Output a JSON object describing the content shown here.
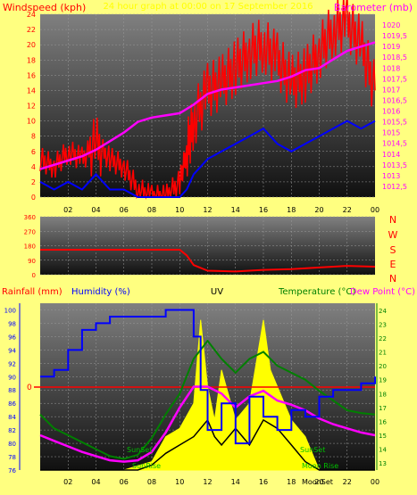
{
  "header": {
    "left_label": "Windspeed (kph)",
    "center_label": "24 hour graph at 00:00 on 17 September 2016",
    "right_label": "Barometer (mb)"
  },
  "compass": [
    "N",
    "W",
    "S",
    "E",
    "N"
  ],
  "bottom_header": {
    "rainfall": "Rainfall (mm)",
    "humidity": "Humidity (%)",
    "uv": "UV",
    "temperature": "Temperature (°C)",
    "dewpoint": "Dew Point (°C)"
  },
  "annotations": {
    "sunset_left": "SunSet",
    "sunset_right": "SunSet",
    "sunrise": "SunRise",
    "moonset": "MoonSet",
    "moonrise": "Moon Rise",
    "rain_zero": "0"
  },
  "colors": {
    "background": "#ffff80",
    "wind_gust": "#ff0000",
    "wind_avg": "#0000ff",
    "barometer": "#ff00ff",
    "direction": "#ff0000",
    "humidity": "#0000ff",
    "temperature": "#008000",
    "dewpoint": "#ff00ff",
    "uv": "#ffff00",
    "solar": "#000000",
    "rain": "#ff0000"
  },
  "chart_data": [
    {
      "type": "line",
      "name": "wind-barometer",
      "x_ticks": [
        "02",
        "04",
        "06",
        "08",
        "10",
        "12",
        "14",
        "16",
        "18",
        "20",
        "22",
        "00"
      ],
      "y_left_ticks": [
        "0",
        "2",
        "4",
        "6",
        "8",
        "10",
        "12",
        "14",
        "16",
        "18",
        "20",
        "22",
        "24"
      ],
      "y_left_range": [
        0,
        24
      ],
      "y_right_ticks": [
        "1012,5",
        "1013",
        "1013,5",
        "1014",
        "1014,5",
        "1015",
        "1015,5",
        "1016",
        "1016,5",
        "1017",
        "1017,5",
        "1018",
        "1018,5",
        "1019",
        "1019,5",
        "1020"
      ],
      "y_right_range": [
        1012,
        1020.5
      ],
      "barometer": {
        "x": [
          0,
          1,
          2,
          3,
          4,
          5,
          6,
          7,
          8,
          9,
          10,
          11,
          12,
          13,
          14,
          15,
          16,
          17,
          18,
          19,
          20,
          21,
          22,
          23,
          24
        ],
        "y": [
          1013.3,
          1013.5,
          1013.7,
          1013.9,
          1014.2,
          1014.6,
          1015.0,
          1015.5,
          1015.7,
          1015.8,
          1015.9,
          1016.3,
          1016.8,
          1017.0,
          1017.1,
          1017.2,
          1017.3,
          1017.4,
          1017.6,
          1017.9,
          1018.0,
          1018.4,
          1018.8,
          1019.0,
          1019.2
        ]
      },
      "wind_avg": {
        "x": [
          0,
          1,
          2,
          3,
          4,
          5,
          6,
          7,
          8,
          9,
          10,
          10.5,
          11,
          12,
          13,
          14,
          15,
          16,
          17,
          18,
          19,
          20,
          21,
          22,
          23,
          24
        ],
        "y": [
          2,
          1,
          2,
          1,
          3,
          1,
          1,
          0,
          0,
          0,
          0,
          1,
          3,
          5,
          6,
          7,
          8,
          9,
          7,
          6,
          7,
          8,
          9,
          10,
          9,
          10
        ]
      },
      "wind_gust": {
        "x": [
          0,
          1,
          2,
          3,
          4,
          5,
          6,
          7,
          8,
          9,
          10,
          10.5,
          11,
          12,
          13,
          14,
          15,
          16,
          17,
          18,
          19,
          20,
          21,
          22,
          23,
          24
        ],
        "y": [
          5,
          4,
          6,
          5,
          7,
          5,
          4,
          1,
          0,
          0,
          2,
          6,
          10,
          14,
          15,
          17,
          19,
          20,
          18,
          15,
          16,
          19,
          22,
          23,
          20,
          14
        ]
      }
    },
    {
      "type": "line",
      "name": "wind-direction",
      "y_ticks": [
        "0",
        "90",
        "180",
        "270",
        "360"
      ],
      "y_range": [
        0,
        360
      ],
      "x": [
        0,
        2,
        4,
        6,
        8,
        10,
        10.5,
        11,
        12,
        14,
        16,
        18,
        20,
        22,
        24
      ],
      "y": [
        155,
        155,
        155,
        155,
        155,
        155,
        120,
        60,
        25,
        20,
        30,
        35,
        45,
        55,
        50
      ]
    },
    {
      "type": "line",
      "name": "temp-humidity-uv",
      "x_ticks": [
        "02",
        "04",
        "06",
        "08",
        "10",
        "12",
        "14",
        "16",
        "18",
        "20",
        "22",
        "00"
      ],
      "humidity_ticks": [
        "76",
        "78",
        "80",
        "82",
        "84",
        "86",
        "88",
        "90",
        "92",
        "94",
        "96",
        "98",
        "100"
      ],
      "humidity_range": [
        76,
        101
      ],
      "temp_ticks": [
        "13",
        "14",
        "15",
        "16",
        "17",
        "18",
        "19",
        "20",
        "21",
        "22",
        "23",
        "24"
      ],
      "temp_range": [
        12.5,
        24.5
      ],
      "humidity": {
        "x": [
          0,
          1,
          2,
          3,
          4,
          5,
          6,
          7,
          8,
          9,
          10,
          11,
          11.5,
          12,
          13,
          14,
          15,
          16,
          17,
          18,
          19,
          20,
          21,
          22,
          23,
          24
        ],
        "y": [
          90,
          91,
          94,
          97,
          98,
          99,
          99,
          99,
          99,
          100,
          100,
          96,
          88,
          82,
          86,
          80,
          87,
          84,
          82,
          85,
          84,
          87,
          88,
          88,
          89,
          90
        ]
      },
      "temperature": {
        "x": [
          0,
          1,
          2,
          3,
          4,
          5,
          6,
          7,
          8,
          9,
          10,
          11,
          12,
          13,
          14,
          15,
          16,
          17,
          18,
          19,
          20,
          21,
          22,
          23,
          24
        ],
        "y": [
          16.5,
          15.5,
          15.0,
          14.5,
          14.0,
          13.5,
          13.3,
          13.6,
          14.8,
          16.5,
          18.0,
          20.5,
          21.8,
          20.5,
          19.5,
          20.5,
          21.0,
          20.0,
          19.5,
          19.0,
          18.2,
          17.5,
          16.8,
          16.6,
          16.5
        ]
      },
      "dewpoint": {
        "x": [
          0,
          1,
          2,
          3,
          4,
          5,
          6,
          7,
          8,
          9,
          10,
          11,
          12,
          13,
          14,
          15,
          16,
          17,
          18,
          19,
          20,
          21,
          22,
          23,
          24
        ],
        "y": [
          15.0,
          14.6,
          14.2,
          13.8,
          13.5,
          13.2,
          13.1,
          13.2,
          13.8,
          15.2,
          17.0,
          18.5,
          18.5,
          18.0,
          17.0,
          17.8,
          18.2,
          17.5,
          17.2,
          16.8,
          16.2,
          15.8,
          15.5,
          15.2,
          15.0
        ]
      },
      "uv": {
        "x": [
          0,
          6,
          8,
          9,
          10,
          11,
          11.5,
          12,
          12.5,
          13,
          14,
          15,
          16,
          16.5,
          17,
          18,
          19,
          19.5,
          20,
          24
        ],
        "y": [
          0,
          0,
          0.5,
          2,
          2.5,
          4,
          9,
          5,
          3,
          6,
          3,
          4,
          9,
          6,
          5,
          3,
          2,
          1,
          0,
          0
        ]
      },
      "solar": {
        "x": [
          0,
          7,
          8,
          9,
          10,
          11,
          12,
          12.5,
          13,
          14,
          15,
          16,
          17,
          18,
          19,
          20,
          24
        ],
        "y": [
          0,
          0,
          0.3,
          1,
          1.5,
          2,
          3,
          2,
          1.5,
          2.5,
          1.5,
          3,
          2.5,
          1.5,
          0.5,
          0,
          0
        ]
      },
      "uv_range": [
        0,
        10
      ],
      "rain_zero": 0
    }
  ]
}
